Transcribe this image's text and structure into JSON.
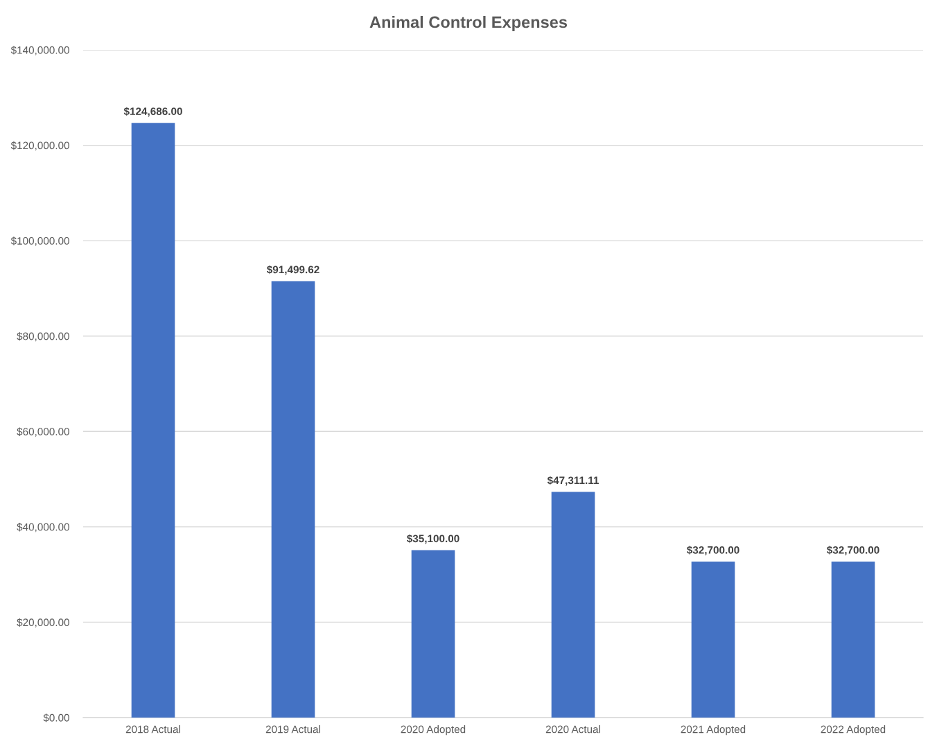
{
  "chart_data": {
    "type": "bar",
    "title": "Animal Control Expenses",
    "categories": [
      "2018 Actual",
      "2019 Actual",
      "2020 Adopted",
      "2020 Actual",
      "2021 Adopted",
      "2022 Adopted"
    ],
    "values": [
      124686.0,
      91499.62,
      35100.0,
      47311.11,
      32700.0,
      32700.0
    ],
    "value_labels": [
      "$124,686.00",
      "$91,499.62",
      "$35,100.00",
      "$47,311.11",
      "$32,700.00",
      "$32,700.00"
    ],
    "color": "#4472c4",
    "ylim": [
      0,
      140000
    ],
    "yticks": [
      {
        "value": 0,
        "label": "$0.00"
      },
      {
        "value": 20000,
        "label": "$20,000.00"
      },
      {
        "value": 40000,
        "label": "$40,000.00"
      },
      {
        "value": 60000,
        "label": "$60,000.00"
      },
      {
        "value": 80000,
        "label": "$80,000.00"
      },
      {
        "value": 100000,
        "label": "$100,000.00"
      },
      {
        "value": 120000,
        "label": "$120,000.00"
      },
      {
        "value": 140000,
        "label": "$140,000.00"
      }
    ],
    "grid": "y"
  }
}
